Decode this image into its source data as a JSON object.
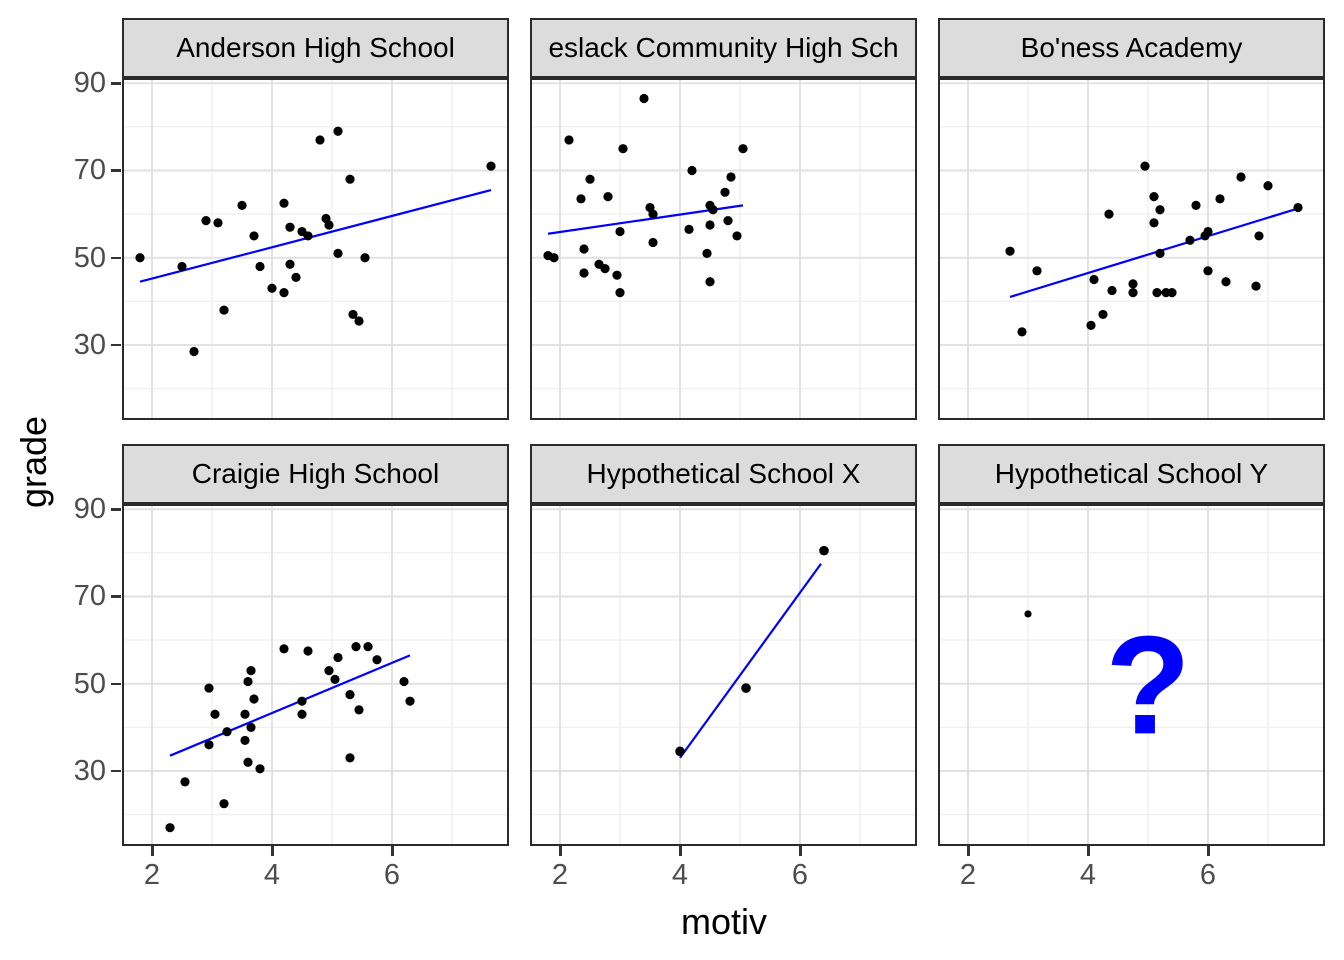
{
  "figure": {
    "y_axis_title": "grade",
    "x_axis_title": "motiv",
    "x_tick_labels": [
      "2",
      "4",
      "6"
    ],
    "y_tick_labels": [
      "90",
      "70",
      "50",
      "30"
    ],
    "x_tick_values": [
      2,
      4,
      6
    ],
    "y_tick_values": [
      90,
      70,
      50,
      30
    ],
    "colors": {
      "background": "#FFFFFF",
      "strip_fill": "#DCDCDC",
      "strip_border": "#2B2B2B",
      "panel_border": "#2B2B2B",
      "grid_major": "#E2E2E2",
      "grid_minor": "#F0F0F0",
      "point": "#000000",
      "trend_line": "#0000FF",
      "annotation": "#0000FF",
      "axis_text": "#4D4D4D",
      "axis_title": "#000000"
    }
  },
  "chart_data": [
    {
      "type": "scatter",
      "title": "Anderson High School",
      "xlabel": "motiv",
      "ylabel": "grade",
      "xlim": [
        1.5,
        7.95
      ],
      "ylim": [
        12.8,
        91.2
      ],
      "x_ticks": [
        2,
        4,
        6
      ],
      "y_ticks": [
        30,
        50,
        70,
        90
      ],
      "grid": true,
      "point_radius": 4.6,
      "points": [
        [
          1.8,
          50
        ],
        [
          2.5,
          48
        ],
        [
          2.7,
          28.5
        ],
        [
          2.9,
          58.5
        ],
        [
          3.1,
          58
        ],
        [
          3.2,
          38
        ],
        [
          3.5,
          62
        ],
        [
          3.7,
          55
        ],
        [
          3.8,
          48
        ],
        [
          4.0,
          43
        ],
        [
          4.2,
          62.5
        ],
        [
          4.2,
          42
        ],
        [
          4.3,
          48.5
        ],
        [
          4.3,
          57
        ],
        [
          4.4,
          45.5
        ],
        [
          4.5,
          56
        ],
        [
          4.6,
          55
        ],
        [
          4.8,
          77
        ],
        [
          4.9,
          59
        ],
        [
          4.95,
          57.5
        ],
        [
          5.1,
          79
        ],
        [
          5.1,
          51
        ],
        [
          5.3,
          68
        ],
        [
          5.35,
          37
        ],
        [
          5.45,
          35.5
        ],
        [
          5.55,
          50
        ],
        [
          7.65,
          71
        ]
      ],
      "trend_line": {
        "x": [
          1.8,
          7.65
        ],
        "y": [
          44.5,
          65.5
        ]
      },
      "annotation": null
    },
    {
      "type": "scatter",
      "title": "eslack Community High Sch",
      "xlabel": "motiv",
      "ylabel": "grade",
      "xlim": [
        1.5,
        7.95
      ],
      "ylim": [
        12.8,
        91.2
      ],
      "x_ticks": [
        2,
        4,
        6
      ],
      "y_ticks": [
        30,
        50,
        70,
        90
      ],
      "grid": true,
      "point_radius": 4.6,
      "points": [
        [
          1.8,
          50.5
        ],
        [
          1.9,
          50
        ],
        [
          2.15,
          77
        ],
        [
          2.35,
          63.5
        ],
        [
          2.4,
          52
        ],
        [
          2.4,
          46.5
        ],
        [
          2.5,
          68
        ],
        [
          2.65,
          48.5
        ],
        [
          2.75,
          47.5
        ],
        [
          2.8,
          64
        ],
        [
          2.95,
          46
        ],
        [
          3.0,
          56
        ],
        [
          3.0,
          42
        ],
        [
          3.05,
          75
        ],
        [
          3.4,
          86.5
        ],
        [
          3.5,
          61.5
        ],
        [
          3.55,
          60
        ],
        [
          3.55,
          53.5
        ],
        [
          4.15,
          56.5
        ],
        [
          4.2,
          70
        ],
        [
          4.45,
          51
        ],
        [
          4.5,
          62
        ],
        [
          4.55,
          61
        ],
        [
          4.5,
          57.5
        ],
        [
          4.5,
          44.5
        ],
        [
          4.75,
          65
        ],
        [
          4.8,
          58.5
        ],
        [
          4.85,
          68.5
        ],
        [
          4.95,
          55
        ],
        [
          5.05,
          75
        ]
      ],
      "trend_line": {
        "x": [
          1.8,
          5.05
        ],
        "y": [
          55.5,
          62
        ]
      },
      "annotation": null
    },
    {
      "type": "scatter",
      "title": "Bo'ness Academy",
      "xlabel": "motiv",
      "ylabel": "grade",
      "xlim": [
        1.5,
        7.95
      ],
      "ylim": [
        12.8,
        91.2
      ],
      "x_ticks": [
        2,
        4,
        6
      ],
      "y_ticks": [
        30,
        50,
        70,
        90
      ],
      "grid": true,
      "point_radius": 4.6,
      "points": [
        [
          2.7,
          51.5
        ],
        [
          2.9,
          33
        ],
        [
          3.15,
          47
        ],
        [
          4.05,
          34.5
        ],
        [
          4.1,
          45
        ],
        [
          4.25,
          37
        ],
        [
          4.35,
          60
        ],
        [
          4.4,
          42.5
        ],
        [
          4.75,
          44
        ],
        [
          4.75,
          42
        ],
        [
          4.95,
          71
        ],
        [
          5.1,
          64
        ],
        [
          5.1,
          58
        ],
        [
          5.15,
          42
        ],
        [
          5.2,
          61
        ],
        [
          5.2,
          51
        ],
        [
          5.3,
          42
        ],
        [
          5.4,
          42
        ],
        [
          5.7,
          54
        ],
        [
          5.8,
          62
        ],
        [
          5.95,
          55
        ],
        [
          6.0,
          56
        ],
        [
          6.0,
          47
        ],
        [
          6.2,
          63.5
        ],
        [
          6.3,
          44.5
        ],
        [
          6.55,
          68.5
        ],
        [
          6.8,
          43.5
        ],
        [
          6.85,
          55
        ],
        [
          7.0,
          66.5
        ],
        [
          7.5,
          61.5
        ]
      ],
      "trend_line": {
        "x": [
          2.7,
          7.55
        ],
        "y": [
          41,
          61.5
        ]
      },
      "annotation": null
    },
    {
      "type": "scatter",
      "title": "Craigie High School",
      "xlabel": "motiv",
      "ylabel": "grade",
      "xlim": [
        1.5,
        7.95
      ],
      "ylim": [
        12.8,
        91.2
      ],
      "x_ticks": [
        2,
        4,
        6
      ],
      "y_ticks": [
        30,
        50,
        70,
        90
      ],
      "grid": true,
      "point_radius": 4.6,
      "points": [
        [
          2.3,
          17
        ],
        [
          2.55,
          27.5
        ],
        [
          2.95,
          49
        ],
        [
          2.95,
          36
        ],
        [
          3.05,
          43
        ],
        [
          3.2,
          22.5
        ],
        [
          3.25,
          39
        ],
        [
          3.55,
          43
        ],
        [
          3.55,
          37
        ],
        [
          3.6,
          50.5
        ],
        [
          3.6,
          32
        ],
        [
          3.65,
          53
        ],
        [
          3.65,
          40
        ],
        [
          3.7,
          46.5
        ],
        [
          3.8,
          30.5
        ],
        [
          4.2,
          58
        ],
        [
          4.5,
          46
        ],
        [
          4.5,
          43
        ],
        [
          4.6,
          57.5
        ],
        [
          4.95,
          53
        ],
        [
          5.05,
          51
        ],
        [
          5.1,
          56
        ],
        [
          5.3,
          47.5
        ],
        [
          5.3,
          33
        ],
        [
          5.4,
          58.5
        ],
        [
          5.45,
          44
        ],
        [
          5.6,
          58.5
        ],
        [
          5.75,
          55.5
        ],
        [
          6.2,
          50.5
        ],
        [
          6.3,
          46
        ]
      ],
      "trend_line": {
        "x": [
          2.3,
          6.3
        ],
        "y": [
          33.5,
          56.5
        ]
      },
      "annotation": null
    },
    {
      "type": "scatter",
      "title": "Hypothetical School X",
      "xlabel": "motiv",
      "ylabel": "grade",
      "xlim": [
        1.5,
        7.95
      ],
      "ylim": [
        12.8,
        91.2
      ],
      "x_ticks": [
        2,
        4,
        6
      ],
      "y_ticks": [
        30,
        50,
        70,
        90
      ],
      "grid": true,
      "point_radius": 4.8,
      "points": [
        [
          4.0,
          34.5
        ],
        [
          5.1,
          49
        ],
        [
          6.4,
          80.5
        ]
      ],
      "trend_line": {
        "x": [
          4.0,
          6.35
        ],
        "y": [
          33,
          77.5
        ]
      },
      "annotation": null
    },
    {
      "type": "scatter",
      "title": "Hypothetical School Y",
      "xlabel": "motiv",
      "ylabel": "grade",
      "xlim": [
        1.5,
        7.95
      ],
      "ylim": [
        12.8,
        91.2
      ],
      "x_ticks": [
        2,
        4,
        6
      ],
      "y_ticks": [
        30,
        50,
        70,
        90
      ],
      "grid": true,
      "point_radius": 3.6,
      "points": [
        [
          3.0,
          66
        ]
      ],
      "trend_line": null,
      "annotation": {
        "text": "?",
        "x": 5.0,
        "y": 50,
        "font_size": 140,
        "bold": true
      }
    }
  ]
}
